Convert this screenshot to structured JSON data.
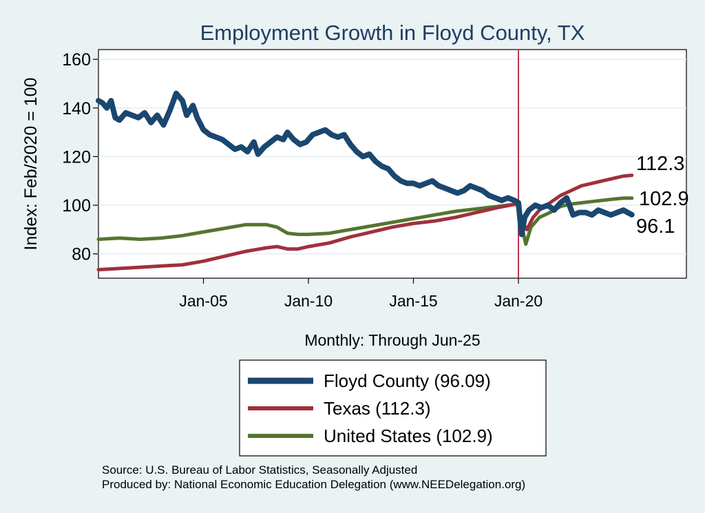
{
  "chart_data": {
    "type": "line",
    "title": "Employment Growth in Floyd  County, TX",
    "ylabel": "Index: Feb/2020 = 100",
    "xlabel": "Monthly: Through Jun-25",
    "ylim": [
      70,
      164
    ],
    "xlim": [
      2000.0,
      2028.0
    ],
    "y_ticks": [
      {
        "value": 80,
        "label": "80"
      },
      {
        "value": 100,
        "label": "100"
      },
      {
        "value": 120,
        "label": "120"
      },
      {
        "value": 140,
        "label": "140"
      },
      {
        "value": 160,
        "label": "160"
      }
    ],
    "x_ticks": [
      {
        "value": 2005.0,
        "label": "Jan-05"
      },
      {
        "value": 2010.0,
        "label": "Jan-10"
      },
      {
        "value": 2015.0,
        "label": "Jan-15"
      },
      {
        "value": 2020.0,
        "label": "Jan-20"
      }
    ],
    "reference_line": {
      "x": 2020.0,
      "color": "#c0334d"
    },
    "series": [
      {
        "name": "Floyd  County",
        "legend_label": "Floyd  County (96.09)",
        "end_label": "96.1",
        "color": "#1a476f",
        "width": 8,
        "x": [
          2000.0,
          2000.2,
          2000.4,
          2000.6,
          2000.8,
          2001.0,
          2001.3,
          2001.6,
          2001.9,
          2002.2,
          2002.5,
          2002.8,
          2003.1,
          2003.4,
          2003.7,
          2004.0,
          2004.2,
          2004.5,
          2004.7,
          2005.0,
          2005.3,
          2005.6,
          2005.9,
          2006.2,
          2006.5,
          2006.8,
          2007.1,
          2007.4,
          2007.6,
          2007.9,
          2008.2,
          2008.5,
          2008.8,
          2009.0,
          2009.3,
          2009.6,
          2009.9,
          2010.2,
          2010.5,
          2010.8,
          2011.1,
          2011.4,
          2011.7,
          2012.0,
          2012.3,
          2012.6,
          2012.9,
          2013.2,
          2013.5,
          2013.8,
          2014.1,
          2014.4,
          2014.7,
          2015.0,
          2015.3,
          2015.6,
          2015.9,
          2016.2,
          2016.5,
          2016.8,
          2017.1,
          2017.4,
          2017.7,
          2018.0,
          2018.3,
          2018.6,
          2018.9,
          2019.2,
          2019.5,
          2019.8,
          2020.0,
          2020.15,
          2020.3,
          2020.5,
          2020.8,
          2021.1,
          2021.4,
          2021.7,
          2022.0,
          2022.3,
          2022.6,
          2022.9,
          2023.2,
          2023.5,
          2023.8,
          2024.1,
          2024.4,
          2024.7,
          2025.0,
          2025.2,
          2025.4
        ],
        "values": [
          143,
          142,
          140,
          143,
          136,
          135,
          138,
          137,
          136,
          138,
          134,
          137,
          133,
          139,
          146,
          143,
          137,
          141,
          136,
          131,
          129,
          128,
          127,
          125,
          123,
          124,
          122,
          126,
          121,
          124,
          126,
          128,
          127,
          130,
          127,
          125,
          126,
          129,
          130,
          131,
          129,
          128,
          129,
          125,
          122,
          120,
          121,
          118,
          116,
          115,
          112,
          110,
          109,
          109,
          108,
          109,
          110,
          108,
          107,
          106,
          105,
          106,
          108,
          107,
          106,
          104,
          103,
          102,
          103,
          102,
          101,
          88,
          95,
          98,
          100,
          99,
          100,
          98,
          101,
          103,
          96,
          97,
          97,
          96,
          98,
          97,
          96,
          97,
          98,
          97,
          96.1
        ]
      },
      {
        "name": "Texas",
        "legend_label": "Texas (112.3)",
        "end_label": "112.3",
        "color": "#a0303c",
        "width": 5,
        "x": [
          2000.0,
          2001.0,
          2002.0,
          2003.0,
          2004.0,
          2005.0,
          2006.0,
          2007.0,
          2008.0,
          2008.5,
          2009.0,
          2009.5,
          2010.0,
          2011.0,
          2012.0,
          2013.0,
          2014.0,
          2015.0,
          2016.0,
          2017.0,
          2018.0,
          2019.0,
          2019.9,
          2020.0,
          2020.2,
          2020.4,
          2020.7,
          2021.0,
          2021.5,
          2022.0,
          2022.5,
          2023.0,
          2023.5,
          2024.0,
          2024.5,
          2025.0,
          2025.4
        ],
        "values": [
          73.5,
          74,
          74.5,
          75,
          75.5,
          77,
          79,
          81,
          82.5,
          83,
          82,
          82,
          83,
          84.5,
          87,
          89,
          91,
          92.5,
          93.5,
          95,
          97,
          99,
          100.5,
          100,
          93,
          90,
          95,
          98,
          101,
          104,
          106,
          108,
          109,
          110,
          111,
          112,
          112.3
        ]
      },
      {
        "name": "United States",
        "legend_label": "United States (102.9)",
        "end_label": "102.9",
        "color": "#55752f",
        "width": 5,
        "x": [
          2000.0,
          2001.0,
          2002.0,
          2003.0,
          2004.0,
          2005.0,
          2006.0,
          2007.0,
          2008.0,
          2008.5,
          2009.0,
          2009.5,
          2010.0,
          2011.0,
          2012.0,
          2013.0,
          2014.0,
          2015.0,
          2016.0,
          2017.0,
          2018.0,
          2019.0,
          2019.9,
          2020.0,
          2020.2,
          2020.35,
          2020.6,
          2021.0,
          2021.5,
          2022.0,
          2022.5,
          2023.0,
          2023.5,
          2024.0,
          2024.5,
          2025.0,
          2025.4
        ],
        "values": [
          86,
          86.5,
          86,
          86.5,
          87.5,
          89,
          90.5,
          92,
          92,
          91,
          88.5,
          88,
          88,
          88.5,
          90,
          91.5,
          93,
          94.5,
          96,
          97.5,
          98.5,
          99.5,
          100.5,
          99,
          90,
          84,
          91,
          95,
          97,
          99.5,
          100.5,
          101,
          101.5,
          102,
          102.5,
          102.9,
          102.9
        ]
      }
    ],
    "legend_position": "bottom-center"
  },
  "source": {
    "line1": "Source: U.S. Bureau of Labor Statistics, Seasonally Adjusted",
    "line2": "Produced by: National Economic Education Delegation (www.NEEDelegation.org)"
  }
}
